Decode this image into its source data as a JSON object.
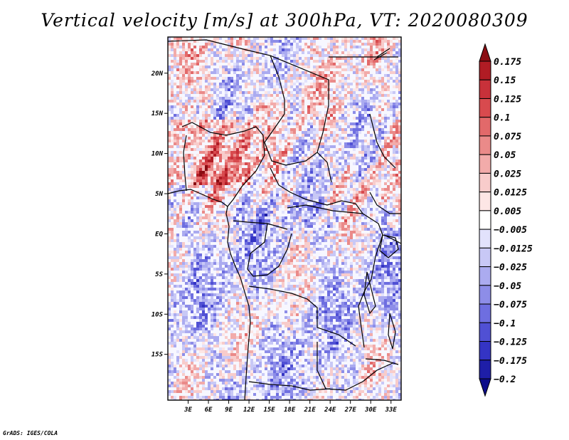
{
  "title": "Vertical velocity [m/s] at 300hPa, VT: 2020080309",
  "credit": "GrADS: IGES/COLA",
  "map": {
    "lat_ticks": [
      {
        "label": "20N",
        "lat": 20
      },
      {
        "label": "15N",
        "lat": 15
      },
      {
        "label": "10N",
        "lat": 10
      },
      {
        "label": "5N",
        "lat": 5
      },
      {
        "label": "EQ",
        "lat": 0
      },
      {
        "label": "5S",
        "lat": -5
      },
      {
        "label": "10S",
        "lat": -10
      },
      {
        "label": "15S",
        "lat": -15
      }
    ],
    "lon_ticks": [
      {
        "label": "3E",
        "lon": 3
      },
      {
        "label": "6E",
        "lon": 6
      },
      {
        "label": "9E",
        "lon": 9
      },
      {
        "label": "12E",
        "lon": 12
      },
      {
        "label": "15E",
        "lon": 15
      },
      {
        "label": "18E",
        "lon": 18
      },
      {
        "label": "21E",
        "lon": 21
      },
      {
        "label": "24E",
        "lon": 24
      },
      {
        "label": "27E",
        "lon": 27
      },
      {
        "label": "30E",
        "lon": 30
      },
      {
        "label": "33E",
        "lon": 33
      }
    ],
    "lon_range": [
      0,
      34.5
    ],
    "lat_range": [
      -20.7,
      24.5
    ],
    "colorbar": {
      "levels": [
        "0.175",
        "0.15",
        "0.125",
        "0.1",
        "0.075",
        "0.05",
        "0.025",
        "0.0125",
        "0.005",
        "-0.005",
        "-0.0125",
        "-0.025",
        "-0.05",
        "-0.075",
        "-0.1",
        "-0.125",
        "-0.175",
        "-0.2"
      ],
      "colors": [
        "#8b0d12",
        "#b01c24",
        "#c8313a",
        "#d84a4e",
        "#e2696a",
        "#ea8a89",
        "#f2abaa",
        "#f8cccb",
        "#fde6e5",
        "#ffffff",
        "#e2e2fc",
        "#c8c8f6",
        "#ababf0",
        "#8d8de8",
        "#6e6ee0",
        "#5050d4",
        "#3434c4",
        "#1e1ea8",
        "#0c0c8a"
      ]
    }
  }
}
